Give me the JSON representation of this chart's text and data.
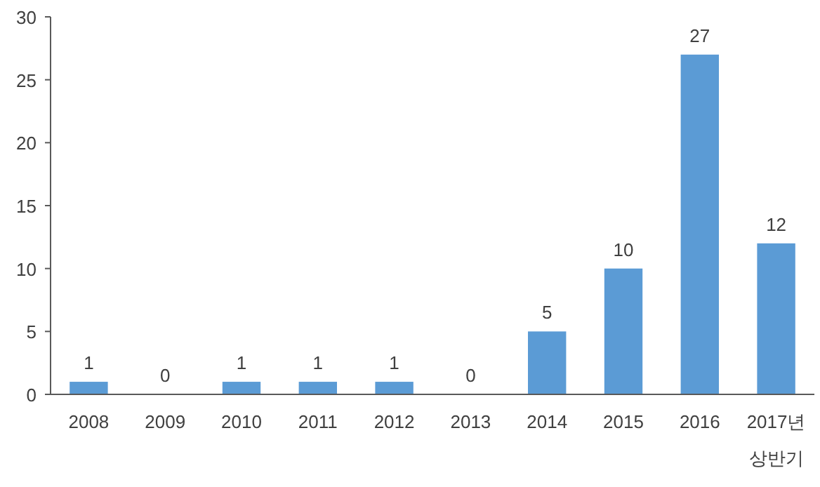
{
  "chart_data": {
    "type": "bar",
    "categories": [
      "2008",
      "2009",
      "2010",
      "2011",
      "2012",
      "2013",
      "2014",
      "2015",
      "2016",
      "2017년 상반기"
    ],
    "values": [
      1,
      0,
      1,
      1,
      1,
      0,
      5,
      10,
      27,
      12
    ],
    "color": "#5b9bd5",
    "ylim": [
      0,
      30
    ],
    "yticks": [
      0,
      5,
      10,
      15,
      20,
      25,
      30
    ],
    "data_labels": true,
    "grid": false
  }
}
